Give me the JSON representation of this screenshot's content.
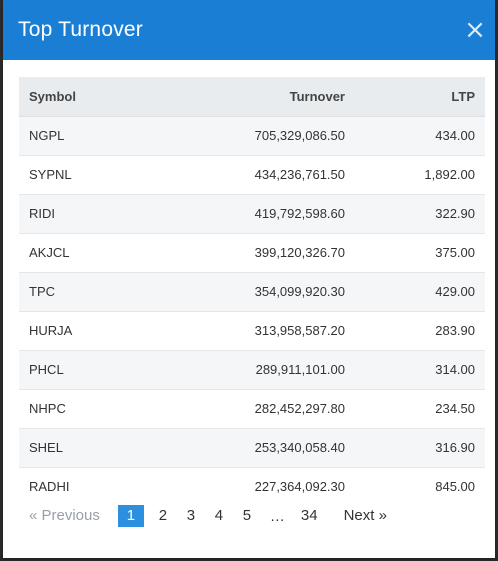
{
  "modal": {
    "title": "Top Turnover",
    "close_label": "×"
  },
  "table": {
    "headers": {
      "symbol": "Symbol",
      "turnover": "Turnover",
      "ltp": "LTP"
    },
    "rows": [
      {
        "symbol": "NGPL",
        "turnover": "705,329,086.50",
        "ltp": "434.00"
      },
      {
        "symbol": "SYPNL",
        "turnover": "434,236,761.50",
        "ltp": "1,892.00"
      },
      {
        "symbol": "RIDI",
        "turnover": "419,792,598.60",
        "ltp": "322.90"
      },
      {
        "symbol": "AKJCL",
        "turnover": "399,120,326.70",
        "ltp": "375.00"
      },
      {
        "symbol": "TPC",
        "turnover": "354,099,920.30",
        "ltp": "429.00"
      },
      {
        "symbol": "HURJA",
        "turnover": "313,958,587.20",
        "ltp": "283.90"
      },
      {
        "symbol": "PHCL",
        "turnover": "289,911,101.00",
        "ltp": "314.00"
      },
      {
        "symbol": "NHPC",
        "turnover": "282,452,297.80",
        "ltp": "234.50"
      },
      {
        "symbol": "SHEL",
        "turnover": "253,340,058.40",
        "ltp": "316.90"
      },
      {
        "symbol": "RADHI",
        "turnover": "227,364,092.30",
        "ltp": "845.00"
      }
    ]
  },
  "pagination": {
    "prev_label": "« Previous",
    "pages": [
      "1",
      "2",
      "3",
      "4",
      "5"
    ],
    "ellipsis": "…",
    "last_page": "34",
    "next_label": "Next »",
    "current_page": "1"
  },
  "colors": {
    "header_bg": "#1a7fd4",
    "active_page_bg": "#2d8fe0",
    "table_head_bg": "#e9ecef"
  }
}
